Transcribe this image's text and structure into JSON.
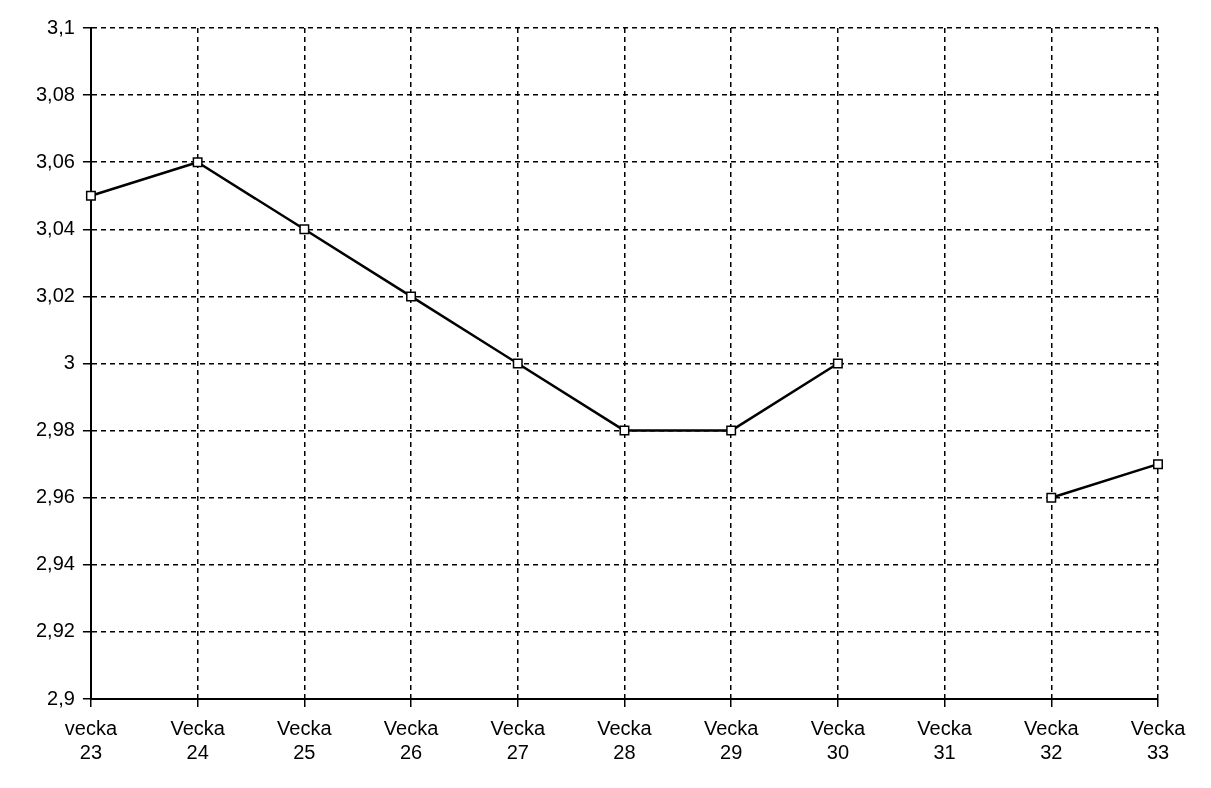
{
  "chart_data": {
    "type": "line",
    "categories": [
      "vecka 23",
      "Vecka 24",
      "Vecka 25",
      "Vecka 26",
      "Vecka 27",
      "Vecka 28",
      "Vecka 29",
      "Vecka 30",
      "Vecka 31",
      "Vecka 32",
      "Vecka 33"
    ],
    "series": [
      {
        "color": "#000000",
        "values": [
          3.05,
          3.06,
          3.04,
          3.02,
          3.0,
          2.98,
          2.98,
          3.0,
          null,
          2.96,
          2.97
        ]
      }
    ],
    "ylim": [
      2.9,
      3.1
    ],
    "yticks": [
      {
        "value": 2.9,
        "label": "2,9"
      },
      {
        "value": 2.92,
        "label": "2,92"
      },
      {
        "value": 2.94,
        "label": "2,94"
      },
      {
        "value": 2.96,
        "label": "2,96"
      },
      {
        "value": 2.98,
        "label": "2,98"
      },
      3,
      {
        "value": 3.02,
        "label": "3,02"
      },
      {
        "value": 3.04,
        "label": "3,04"
      },
      {
        "value": 3.06,
        "label": "3,06"
      },
      {
        "value": 3.08,
        "label": "3,08"
      },
      {
        "value": 3.1,
        "label": "3,1"
      }
    ],
    "grid": true,
    "legend": false,
    "marker": "square",
    "line_style": "solid"
  }
}
